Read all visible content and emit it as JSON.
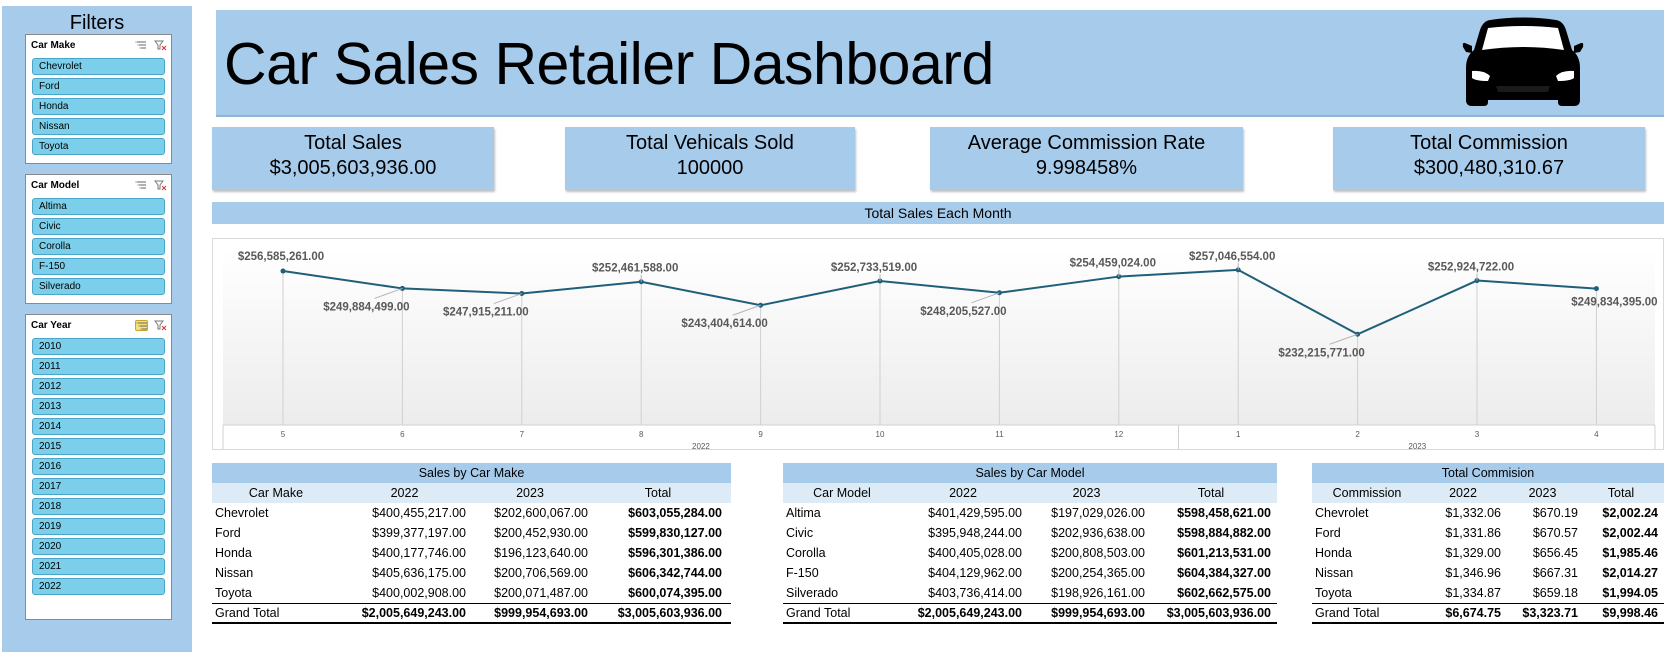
{
  "filters": {
    "title": "Filters",
    "slicers": [
      {
        "label": "Car Make",
        "items": [
          "Chevrolet",
          "Ford",
          "Honda",
          "Nissan",
          "Toyota"
        ]
      },
      {
        "label": "Car Model",
        "items": [
          "Altima",
          "Civic",
          "Corolla",
          "F-150",
          "Silverado"
        ]
      },
      {
        "label": "Car Year",
        "items": [
          "2010",
          "2011",
          "2012",
          "2013",
          "2014",
          "2015",
          "2016",
          "2017",
          "2018",
          "2019",
          "2020",
          "2021",
          "2022"
        ]
      }
    ]
  },
  "header": {
    "title": "Car Sales Retailer Dashboard",
    "icon": "car-icon"
  },
  "kpis": [
    {
      "label": "Total Sales",
      "value": "$3,005,603,936.00"
    },
    {
      "label": "Total Vehicals Sold",
      "value": "100000"
    },
    {
      "label": "Average Commission Rate",
      "value": "9.998458%"
    },
    {
      "label": "Total Commission",
      "value": "$300,480,310.67"
    }
  ],
  "colors": {
    "panel": "#a7cbeb",
    "slicer_item": "#7ccfea",
    "line": "#1f5f7a",
    "table_header": "#ddebf7"
  },
  "chart_data": {
    "type": "line",
    "title": "Total Sales Each Month",
    "categories": [
      "5",
      "6",
      "7",
      "8",
      "9",
      "10",
      "11",
      "12",
      "1",
      "2",
      "3",
      "4"
    ],
    "groups": [
      {
        "label": "2022",
        "categories": [
          "5",
          "6",
          "7",
          "8",
          "9",
          "10",
          "11",
          "12"
        ]
      },
      {
        "label": "2023",
        "categories": [
          "1",
          "2",
          "3",
          "4"
        ]
      }
    ],
    "values": [
      256585261,
      249884499,
      247915211,
      252461588,
      243404614,
      252733519,
      248205527,
      254459024,
      257046554,
      232215771,
      252924722,
      249834395
    ],
    "labels": [
      "$256,585,261.00",
      "$249,884,499.00",
      "$247,915,211.00",
      "$252,461,588.00",
      "$243,404,614.00",
      "$252,733,519.00",
      "$248,205,527.00",
      "$254,459,024.00",
      "$257,046,554.00",
      "$232,215,771.00",
      "$252,924,722.00",
      "$249,834,395.00"
    ],
    "label_positions": [
      "above",
      "below",
      "below",
      "above",
      "below",
      "above",
      "below",
      "above",
      "above",
      "below",
      "above",
      "below"
    ],
    "ylim": [
      225000000,
      262000000
    ]
  },
  "tables": [
    {
      "title": "Sales by Car Make",
      "headers": [
        "Car Make",
        "2022",
        "2023",
        "Total"
      ],
      "rows": [
        [
          "Chevrolet",
          "$400,455,217.00",
          "$202,600,067.00",
          "$603,055,284.00"
        ],
        [
          "Ford",
          "$399,377,197.00",
          "$200,452,930.00",
          "$599,830,127.00"
        ],
        [
          "Honda",
          "$400,177,746.00",
          "$196,123,640.00",
          "$596,301,386.00"
        ],
        [
          "Nissan",
          "$405,636,175.00",
          "$200,706,569.00",
          "$606,342,744.00"
        ],
        [
          "Toyota",
          "$400,002,908.00",
          "$200,071,487.00",
          "$600,074,395.00"
        ]
      ],
      "total": [
        "Grand Total",
        "$2,005,649,243.00",
        "$999,954,693.00",
        "$3,005,603,936.00"
      ]
    },
    {
      "title": "Sales by Car Model",
      "headers": [
        "Car Model",
        "2022",
        "2023",
        "Total"
      ],
      "rows": [
        [
          "Altima",
          "$401,429,595.00",
          "$197,029,026.00",
          "$598,458,621.00"
        ],
        [
          "Civic",
          "$395,948,244.00",
          "$202,936,638.00",
          "$598,884,882.00"
        ],
        [
          "Corolla",
          "$400,405,028.00",
          "$200,808,503.00",
          "$601,213,531.00"
        ],
        [
          "F-150",
          "$404,129,962.00",
          "$200,254,365.00",
          "$604,384,327.00"
        ],
        [
          "Silverado",
          "$403,736,414.00",
          "$198,926,161.00",
          "$602,662,575.00"
        ]
      ],
      "total": [
        "Grand Total",
        "$2,005,649,243.00",
        "$999,954,693.00",
        "$3,005,603,936.00"
      ]
    },
    {
      "title": "Total Commision",
      "headers": [
        "Commission",
        "2022",
        "2023",
        "Total"
      ],
      "rows": [
        [
          "Chevrolet",
          "$1,332.06",
          "$670.19",
          "$2,002.24"
        ],
        [
          "Ford",
          "$1,331.86",
          "$670.57",
          "$2,002.44"
        ],
        [
          "Honda",
          "$1,329.00",
          "$656.45",
          "$1,985.46"
        ],
        [
          "Nissan",
          "$1,346.96",
          "$667.31",
          "$2,014.27"
        ],
        [
          "Toyota",
          "$1,334.87",
          "$659.18",
          "$1,994.05"
        ]
      ],
      "total": [
        "Grand Total",
        "$6,674.75",
        "$3,323.71",
        "$9,998.46"
      ]
    }
  ]
}
